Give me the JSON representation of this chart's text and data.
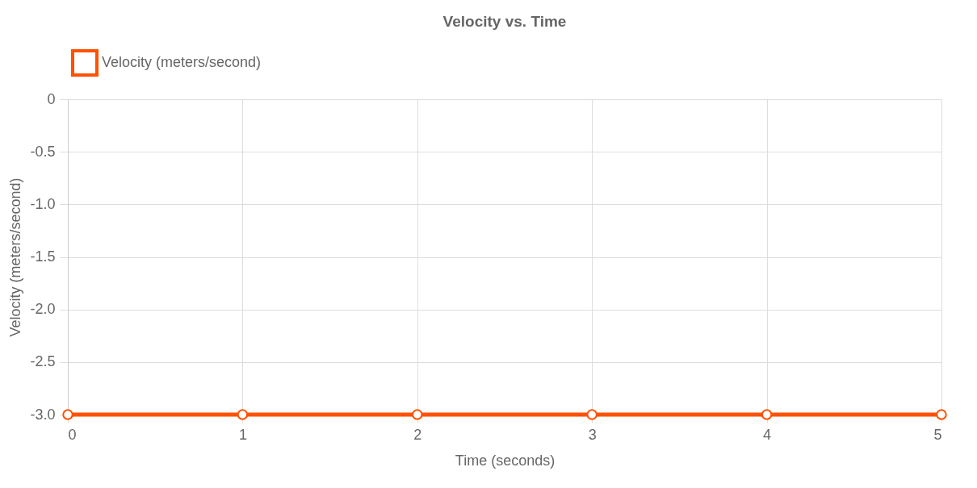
{
  "chart_data": {
    "type": "line",
    "title": "Velocity vs. Time",
    "xlabel": "Time (seconds)",
    "ylabel": "Velocity (meters/second)",
    "x": [
      0,
      1,
      2,
      3,
      4,
      5
    ],
    "series": [
      {
        "name": "Velocity (meters/second)",
        "color": "#ff5100",
        "values": [
          -3,
          -3,
          -3,
          -3,
          -3,
          -3
        ]
      }
    ],
    "xlim": [
      0,
      5
    ],
    "xticks": [
      0,
      1,
      2,
      3,
      4,
      5
    ],
    "ylim": [
      -3,
      0
    ],
    "yticks": [
      0,
      -0.5,
      {
        "value": -1,
        "label": "-1.0"
      },
      -1.5,
      {
        "value": -2,
        "label": "-2.0"
      },
      -2.5,
      {
        "value": -3,
        "label": "-3.0"
      }
    ],
    "grid": true,
    "legend": "top",
    "marker": "circle",
    "line_style": "solid"
  }
}
